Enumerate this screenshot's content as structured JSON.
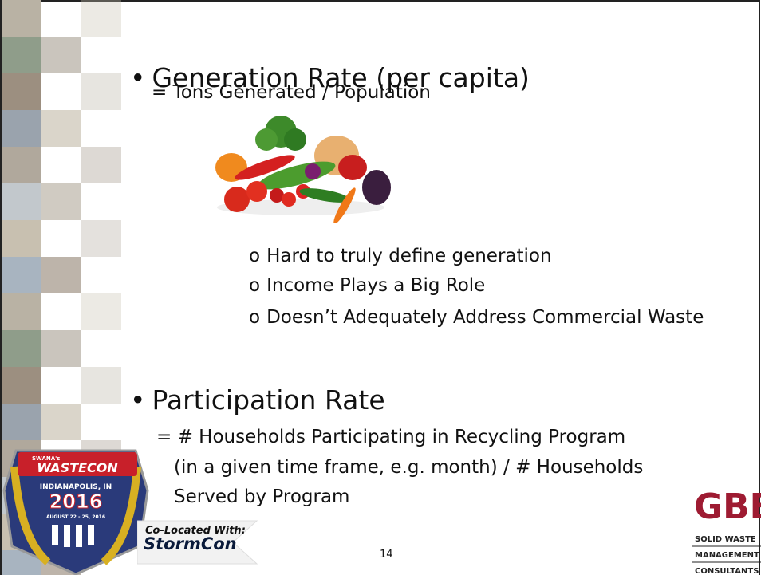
{
  "slide": {
    "bullets": [
      {
        "title": "Generation Rate (per capita)",
        "formula": "= Tons Generated / Population",
        "points": [
          "Hard to truly define generation",
          "Income Plays a Big Role",
          "Doesn’t Adequately Address Commercial Waste"
        ]
      },
      {
        "title": "Participation Rate",
        "formula_lines": [
          "= # Households Participating in Recycling Program",
          "(in a given time frame, e.g. month) / # Households",
          "Served by Program"
        ]
      }
    ],
    "page_number": "14",
    "wastecon_logo": {
      "org": "SWANA's",
      "name": "WASTECON",
      "city": "INDIANAPOLIS, IN",
      "year": "2016",
      "dates": "AUGUST 22 - 25, 2016"
    },
    "colocated": {
      "label": "Co-Located With:",
      "name": "StormCon"
    },
    "gbb_logo": {
      "name": "GBB",
      "lines": [
        "SOLID WASTE",
        "MANAGEMENT",
        "CONSULTANTS"
      ]
    }
  }
}
